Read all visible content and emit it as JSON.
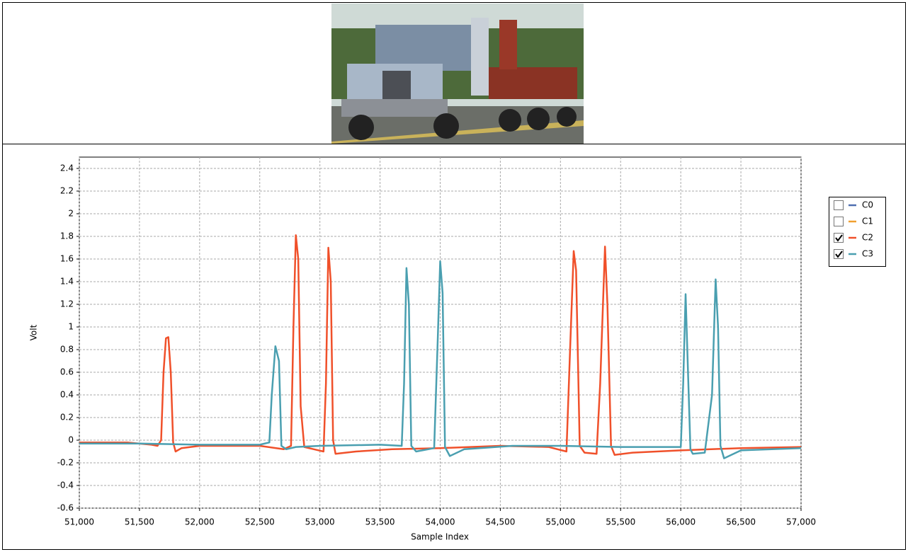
{
  "chart_data": {
    "type": "line",
    "xlabel": "Sample Index",
    "ylabel": "Volt",
    "xlim": [
      51000,
      57000
    ],
    "xticks": [
      {
        "value": 51000,
        "label": "51,000"
      },
      {
        "value": 51500,
        "label": "51,500"
      },
      {
        "value": 52000,
        "label": "52,000"
      },
      {
        "value": 52500,
        "label": "52,500"
      },
      {
        "value": 53000,
        "label": "53,000"
      },
      {
        "value": 53500,
        "label": "53,500"
      },
      {
        "value": 54000,
        "label": "54,000"
      },
      {
        "value": 54500,
        "label": "54,500"
      },
      {
        "value": 55000,
        "label": "55,000"
      },
      {
        "value": 55500,
        "label": "55,500"
      },
      {
        "value": 56000,
        "label": "56,000"
      },
      {
        "value": 56500,
        "label": "56,500"
      },
      {
        "value": 57000,
        "label": "57,000"
      }
    ],
    "ylim": [
      -0.6,
      2.5
    ],
    "yticks": [
      -0.6,
      -0.4,
      -0.2,
      0,
      0.2,
      0.4,
      0.6,
      0.8,
      1,
      1.2,
      1.4,
      1.6,
      1.8,
      2,
      2.2,
      2.4
    ],
    "grid": true,
    "legend": "right",
    "series": [
      {
        "name": "C0",
        "color": "#4f6fb0",
        "checked": false
      },
      {
        "name": "C1",
        "color": "#f0a030",
        "checked": false
      },
      {
        "name": "C2",
        "color": "#f0502a",
        "checked": true,
        "x": [
          51000,
          51400,
          51600,
          51650,
          51680,
          51700,
          51720,
          51740,
          51760,
          51780,
          51800,
          51850,
          52000,
          52500,
          52700,
          52760,
          52780,
          52800,
          52820,
          52840,
          52870,
          52950,
          53030,
          53050,
          53070,
          53090,
          53110,
          53130,
          53300,
          53600,
          54000,
          54500,
          54900,
          55050,
          55080,
          55110,
          55130,
          55160,
          55200,
          55300,
          55330,
          55370,
          55390,
          55420,
          55450,
          55600,
          56000,
          56500,
          57000
        ],
        "values": [
          -0.02,
          -0.02,
          -0.04,
          -0.05,
          0.0,
          0.6,
          0.9,
          0.91,
          0.6,
          -0.02,
          -0.1,
          -0.07,
          -0.05,
          -0.05,
          -0.08,
          -0.05,
          1.0,
          1.81,
          1.6,
          0.3,
          -0.06,
          -0.08,
          -0.1,
          0.5,
          1.7,
          1.4,
          0.0,
          -0.12,
          -0.1,
          -0.08,
          -0.07,
          -0.05,
          -0.06,
          -0.1,
          0.8,
          1.67,
          1.5,
          -0.05,
          -0.11,
          -0.12,
          0.5,
          1.71,
          1.2,
          -0.05,
          -0.13,
          -0.11,
          -0.09,
          -0.07,
          -0.06
        ]
      },
      {
        "name": "C3",
        "color": "#4a9fb0",
        "checked": true,
        "x": [
          51000,
          51500,
          52000,
          52500,
          52580,
          52600,
          52630,
          52660,
          52680,
          52720,
          52800,
          53000,
          53500,
          53680,
          53700,
          53720,
          53740,
          53760,
          53800,
          53950,
          53980,
          54000,
          54020,
          54040,
          54080,
          54200,
          54600,
          55000,
          55500,
          56000,
          56020,
          56040,
          56060,
          56080,
          56100,
          56200,
          56260,
          56290,
          56310,
          56330,
          56360,
          56500,
          57000
        ],
        "values": [
          -0.03,
          -0.03,
          -0.04,
          -0.04,
          -0.02,
          0.4,
          0.83,
          0.7,
          -0.05,
          -0.08,
          -0.06,
          -0.05,
          -0.04,
          -0.05,
          0.5,
          1.52,
          1.2,
          -0.05,
          -0.1,
          -0.07,
          0.9,
          1.58,
          1.3,
          -0.06,
          -0.14,
          -0.08,
          -0.05,
          -0.05,
          -0.06,
          -0.06,
          0.5,
          1.29,
          0.6,
          -0.08,
          -0.12,
          -0.11,
          0.4,
          1.42,
          1.0,
          -0.05,
          -0.16,
          -0.09,
          -0.07
        ]
      }
    ]
  }
}
